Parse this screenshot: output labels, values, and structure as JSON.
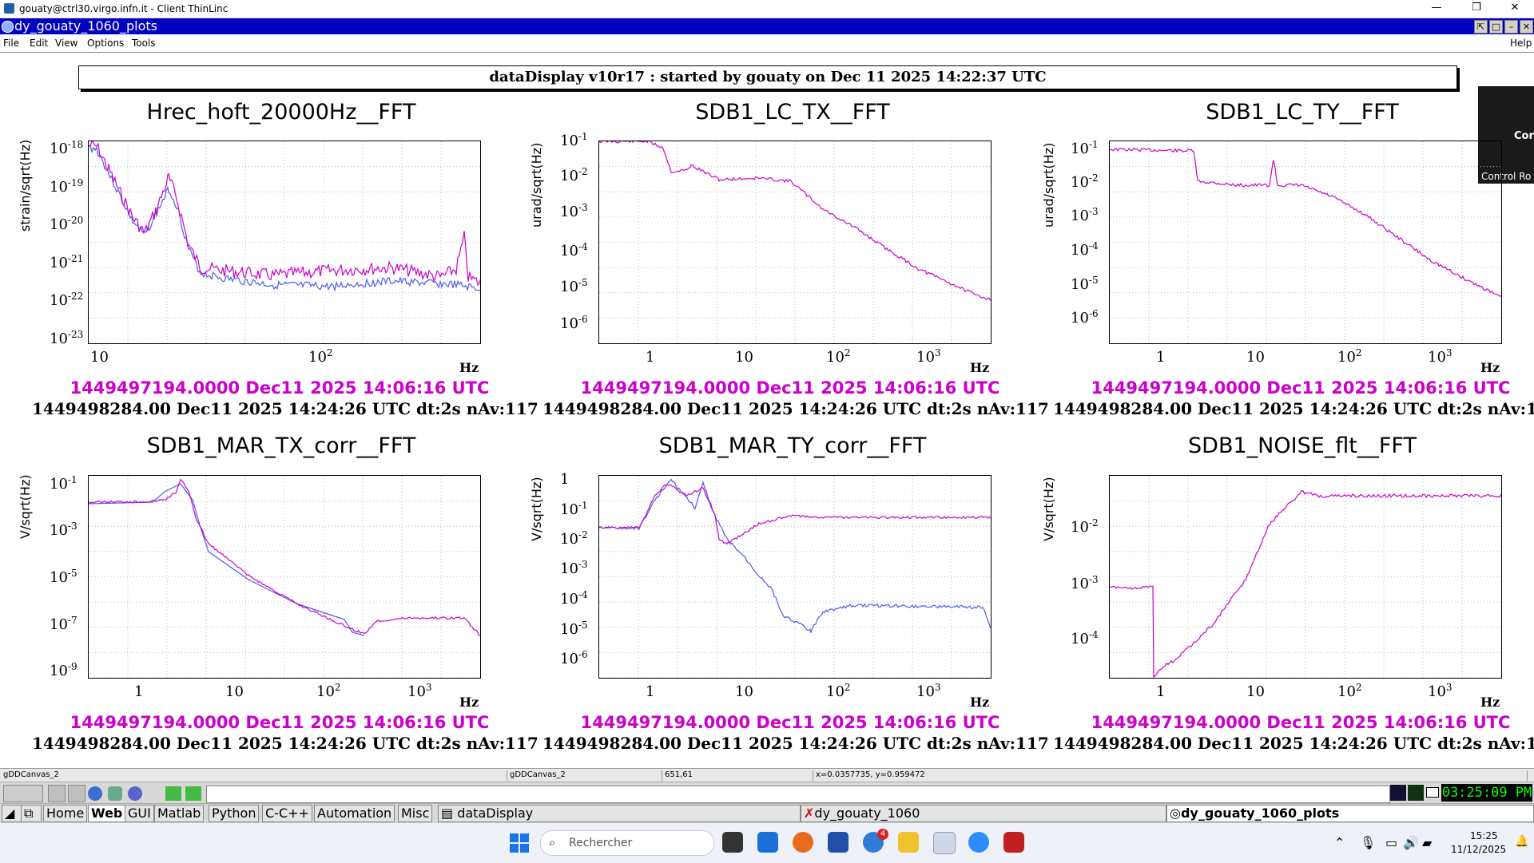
{
  "outer_window": {
    "title": "gouaty@ctrl30.virgo.infn.it - Client ThinLinc",
    "minimize": "—",
    "restore": "❐",
    "close": "✕"
  },
  "app_window": {
    "title": "dy_gouaty_1060_plots"
  },
  "menu": {
    "file": "File",
    "edit": "Edit",
    "view": "View",
    "options": "Options",
    "tools": "Tools",
    "help": "Help"
  },
  "header": "dataDisplay v10r17 : started by gouaty on Dec 11 2025 14:22:37 UTC",
  "overlay": {
    "line1": "Cor",
    "line2": "Control Ro"
  },
  "colors": {
    "magenta": "#cc00cc",
    "blue": "#4a5cf0"
  },
  "plots": [
    {
      "title": "Hrec_hoft_20000Hz__FFT",
      "ylabel": "strain/sqrt(Hz)",
      "xunit": "Hz",
      "yticks": [
        {
          "b": "10",
          "e": "-18"
        },
        {
          "b": "10",
          "e": "-19"
        },
        {
          "b": "10",
          "e": "-20"
        },
        {
          "b": "10",
          "e": "-21"
        },
        {
          "b": "10",
          "e": "-22"
        },
        {
          "b": "10",
          "e": "-23"
        }
      ],
      "xticks": [
        {
          "b": "10",
          "e": ""
        },
        {
          "b": "10",
          "e": "2"
        }
      ],
      "time1": "1449497194.0000 Dec11 2025 14:06:16 UTC",
      "time2": "1449498284.00 Dec11 2025 14:24:26 UTC dt:2s nAv:117"
    },
    {
      "title": "SDB1_LC_TX__FFT",
      "ylabel": "urad/sqrt(Hz)",
      "xunit": "Hz",
      "yticks": [
        {
          "b": "10",
          "e": "-1"
        },
        {
          "b": "10",
          "e": "-2"
        },
        {
          "b": "10",
          "e": "-3"
        },
        {
          "b": "10",
          "e": "-4"
        },
        {
          "b": "10",
          "e": "-5"
        },
        {
          "b": "10",
          "e": "-6"
        }
      ],
      "xticks": [
        {
          "b": "1",
          "e": ""
        },
        {
          "b": "10",
          "e": ""
        },
        {
          "b": "10",
          "e": "2"
        },
        {
          "b": "10",
          "e": "3"
        }
      ],
      "time1": "1449497194.0000 Dec11 2025 14:06:16 UTC",
      "time2": "1449498284.00 Dec11 2025 14:24:26 UTC dt:2s nAv:117"
    },
    {
      "title": "SDB1_LC_TY__FFT",
      "ylabel": "urad/sqrt(Hz)",
      "xunit": "Hz",
      "yticks": [
        {
          "b": "10",
          "e": "-1"
        },
        {
          "b": "10",
          "e": "-2"
        },
        {
          "b": "10",
          "e": "-3"
        },
        {
          "b": "10",
          "e": "-4"
        },
        {
          "b": "10",
          "e": "-5"
        },
        {
          "b": "10",
          "e": "-6"
        }
      ],
      "xticks": [
        {
          "b": "1",
          "e": ""
        },
        {
          "b": "10",
          "e": ""
        },
        {
          "b": "10",
          "e": "2"
        },
        {
          "b": "10",
          "e": "3"
        }
      ],
      "time1": "1449497194.0000 Dec11 2025 14:06:16 UTC",
      "time2": "1449498284.00 Dec11 2025 14:24:26 UTC dt:2s nAv:117"
    },
    {
      "title": "SDB1_MAR_TX_corr__FFT",
      "ylabel": "V/sqrt(Hz)",
      "xunit": "Hz",
      "yticks": [
        {
          "b": "10",
          "e": "-1"
        },
        {
          "b": "10",
          "e": "-3"
        },
        {
          "b": "10",
          "e": "-5"
        },
        {
          "b": "10",
          "e": "-7"
        },
        {
          "b": "10",
          "e": "-9"
        }
      ],
      "xticks": [
        {
          "b": "1",
          "e": ""
        },
        {
          "b": "10",
          "e": ""
        },
        {
          "b": "10",
          "e": "2"
        },
        {
          "b": "10",
          "e": "3"
        }
      ],
      "time1": "1449497194.0000 Dec11 2025 14:06:16 UTC",
      "time2": "1449498284.00 Dec11 2025 14:24:26 UTC dt:2s nAv:117"
    },
    {
      "title": "SDB1_MAR_TY_corr__FFT",
      "ylabel": "V/sqrt(Hz)",
      "xunit": "Hz",
      "yticks": [
        {
          "b": "1",
          "e": ""
        },
        {
          "b": "10",
          "e": "-1"
        },
        {
          "b": "10",
          "e": "-2"
        },
        {
          "b": "10",
          "e": "-3"
        },
        {
          "b": "10",
          "e": "-4"
        },
        {
          "b": "10",
          "e": "-5"
        },
        {
          "b": "10",
          "e": "-6"
        }
      ],
      "xticks": [
        {
          "b": "1",
          "e": ""
        },
        {
          "b": "10",
          "e": ""
        },
        {
          "b": "10",
          "e": "2"
        },
        {
          "b": "10",
          "e": "3"
        }
      ],
      "time1": "1449497194.0000 Dec11 2025 14:06:16 UTC",
      "time2": "1449498284.00 Dec11 2025 14:24:26 UTC dt:2s nAv:117"
    },
    {
      "title": "SDB1_NOISE_flt__FFT",
      "ylabel": "V/sqrt(Hz)",
      "xunit": "Hz",
      "yticks": [
        {
          "b": "10",
          "e": "-2"
        },
        {
          "b": "10",
          "e": "-3"
        },
        {
          "b": "10",
          "e": "-4"
        }
      ],
      "xticks": [
        {
          "b": "1",
          "e": ""
        },
        {
          "b": "10",
          "e": ""
        },
        {
          "b": "10",
          "e": "2"
        },
        {
          "b": "10",
          "e": "3"
        }
      ],
      "time1": "1449497194.0000 Dec11 2025 14:06:16 UTC",
      "time2": "1449498284.00 Dec11 2025 14:24:26 UTC dt:2s nAv:117"
    }
  ],
  "status": {
    "canvas1": "gDDCanvas_2",
    "canvas2": "gDDCanvas_2",
    "pixel": "651,61",
    "coords": "x=0.0357735, y=0.959472"
  },
  "xtaskbar": {
    "items": [
      "Home",
      "Web",
      "GUI",
      "Matlab",
      "Python",
      "C-C++",
      "Automation",
      "Misc"
    ],
    "windows": [
      "dataDisplay",
      "dy_gouaty_1060",
      "dy_gouaty_1060_plots"
    ],
    "clock": "03:25:09 PM"
  },
  "wintaskbar": {
    "search_placeholder": "Rechercher",
    "time": "15:25",
    "date": "11/12/2025",
    "badge": "4"
  }
}
